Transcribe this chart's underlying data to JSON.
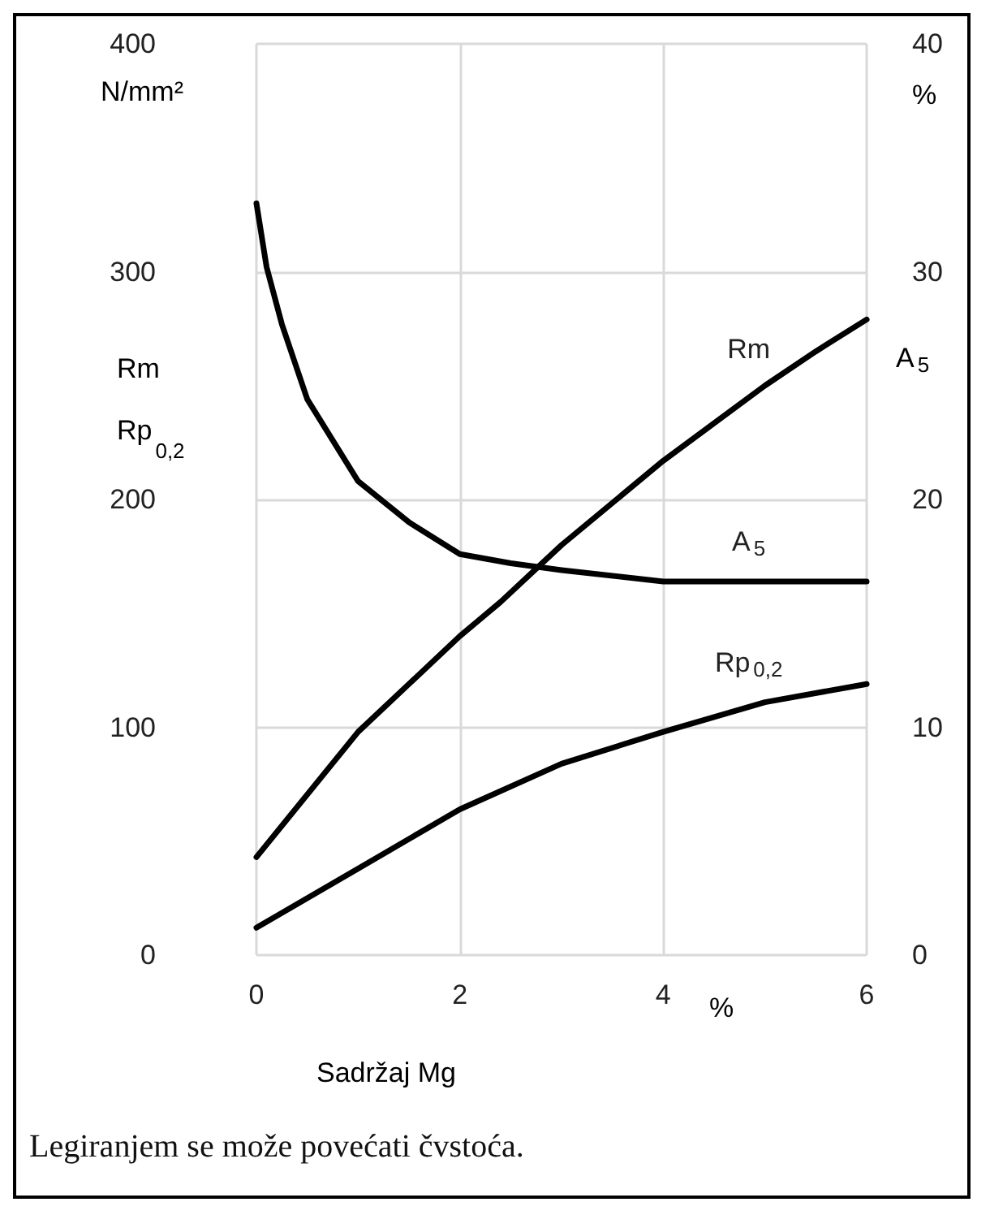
{
  "chart_data": {
    "type": "line",
    "xlabel": "Sadržaj Mg",
    "ylabel": "Rm\nRp$_{0,2}$",
    "y2label": "A$_{5}$",
    "annotations": [
      "N/mm²",
      "%",
      "%",
      "Legiranjem se može povećati čvstoća."
    ],
    "xlim": [
      0,
      6
    ],
    "xticks": [
      0,
      2,
      4,
      6
    ],
    "ylim": [
      0,
      400
    ],
    "yticks": [
      0,
      100,
      200,
      300,
      400
    ],
    "y2lim": [
      0,
      40
    ],
    "y2ticks": [
      0,
      10,
      20,
      30,
      40
    ],
    "grid": true,
    "legend": false,
    "marker": "none",
    "line_style": "solid",
    "series": [
      {
        "name": "Rm",
        "color": "#000000",
        "x": [
          0,
          1,
          2,
          2.4,
          3,
          4,
          5,
          5.5,
          6
        ],
        "values": [
          43,
          98,
          140,
          155,
          180,
          217,
          250,
          265,
          279
        ]
      },
      {
        "name": "A$_{5}$",
        "color": "#000000",
        "axis": "y2",
        "x": [
          0,
          0.1,
          0.25,
          0.5,
          1,
          1.5,
          2,
          2.5,
          3,
          4,
          5,
          6
        ],
        "values": [
          33,
          30.2,
          27.7,
          24.4,
          20.8,
          19,
          17.6,
          17.2,
          16.9,
          16.4,
          16.4,
          16.4
        ]
      },
      {
        "name": "Rp$_{0,2}$",
        "color": "#000000",
        "x": [
          0,
          1,
          2,
          3,
          4,
          5,
          6
        ],
        "values": [
          12,
          38,
          64,
          84,
          98,
          111,
          119
        ]
      }
    ]
  }
}
